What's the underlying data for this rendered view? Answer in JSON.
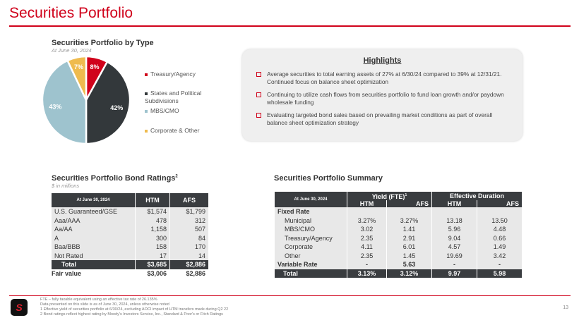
{
  "page": {
    "title": "Securities Portfolio",
    "page_number": "13"
  },
  "pie": {
    "title": "Securities Portfolio by Type",
    "subtitle": "At June 30, 2024",
    "chart_data": {
      "type": "pie",
      "slices": [
        {
          "name": "Treasury/Agency",
          "value": 8,
          "label": "8%",
          "color": "#d0021b"
        },
        {
          "name": "States and Political Subdivisions",
          "value": 42,
          "label": "42%",
          "color": "#33383b"
        },
        {
          "name": "MBS/CMO",
          "value": 43,
          "label": "43%",
          "color": "#9ec3ce"
        },
        {
          "name": "Corporate & Other",
          "value": 7,
          "label": "7%",
          "color": "#efbb4e"
        }
      ],
      "legend": "right"
    }
  },
  "highlights": {
    "title": "Highlights",
    "items": [
      "Average securities to total earning assets of 27% at 6/30/24 compared to 39% at 12/31/21. Continued focus on balance sheet optimization",
      "Continuing to utilize cash flows from securities portfolio to fund loan growth and/or paydown wholesale funding",
      "Evaluating targeted bond sales based on prevailing market conditions as part of overall balance sheet optimization strategy"
    ]
  },
  "bond": {
    "title": "Securities Portfolio Bond Ratings",
    "sup": "2",
    "subtitle": "$ in millions",
    "headers": [
      "At June 30, 2024",
      "HTM",
      "AFS"
    ],
    "rows": [
      [
        "U.S. Guaranteed/GSE",
        "$1,574",
        "$1,799"
      ],
      [
        "Aaa/AAA",
        "478",
        "312"
      ],
      [
        "Aa/AA",
        "1,158",
        "507"
      ],
      [
        "A",
        "300",
        "84"
      ],
      [
        "Baa/BBB",
        "158",
        "170"
      ],
      [
        "Not Rated",
        "17",
        "14"
      ]
    ],
    "total": [
      "Total",
      "$3,685",
      "$2,886"
    ],
    "fair": [
      "Fair value",
      "$3,006",
      "$2,886"
    ]
  },
  "summary": {
    "title": "Securities Portfolio Summary",
    "date": "At June 30, 2024",
    "group1": "Yield (FTE)",
    "group1_sup": "1",
    "group2": "Effective Duration",
    "sub": [
      "HTM",
      "AFS",
      "HTM",
      "AFS"
    ],
    "fixed": "Fixed Rate",
    "rows": [
      [
        "Municipal",
        "3.27%",
        "3.27%",
        "13.18",
        "13.50"
      ],
      [
        "MBS/CMO",
        "3.02",
        "1.41",
        "5.96",
        "4.48"
      ],
      [
        "Treasury/Agency",
        "2.35",
        "2.91",
        "9.04",
        "0.66"
      ],
      [
        "Corporate",
        "4.11",
        "6.01",
        "4.57",
        "1.49"
      ],
      [
        "Other",
        "2.35",
        "1.45",
        "19.69",
        "3.42"
      ]
    ],
    "variable": [
      "Variable Rate",
      "-",
      "5.63",
      "-",
      "-"
    ],
    "total": [
      "Total",
      "3.13%",
      "3.12%",
      "9.97",
      "5.98"
    ]
  },
  "footnotes": [
    "FTE – fully taxable equivalent using an effective tax rate of 26.135%",
    "Data presented on this slide is as of June 30, 2024, unless otherwise noted",
    "1   Effective yield of securities portfolio at 6/30/24, excluding AOCI impact of HTM transfers made during Q2 22",
    "2   Bond ratings reflect highest rating by Moody's Investors Service, Inc., Standard & Poor's or Fitch Ratings"
  ],
  "logo": "SB"
}
